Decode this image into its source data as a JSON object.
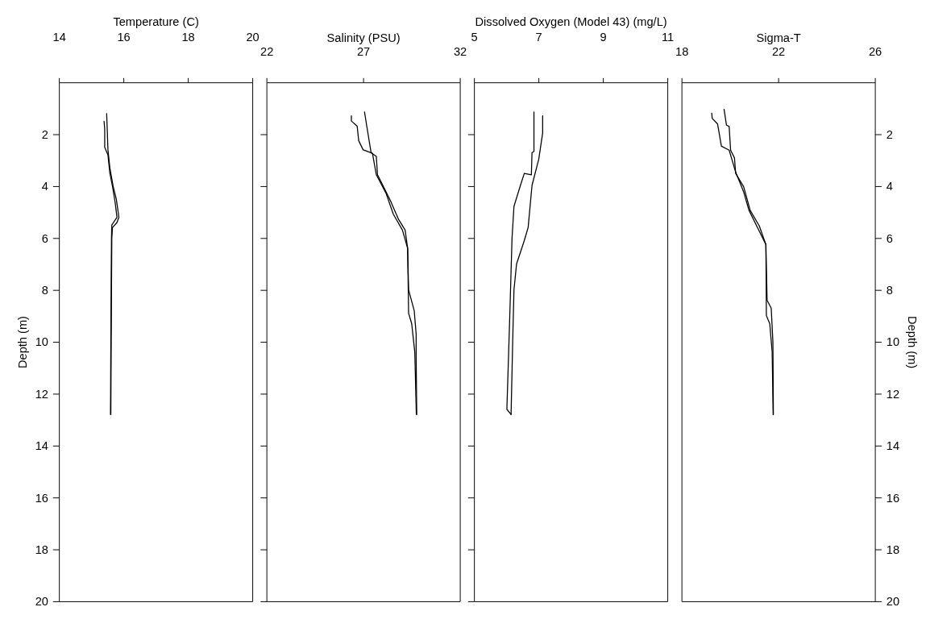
{
  "chart_data": [
    {
      "type": "line",
      "xlabel": "Temperature (C)",
      "ylabel": "Depth (m)",
      "xlim": [
        14,
        20
      ],
      "xticks": [
        14,
        16,
        18,
        20
      ],
      "ylim": [
        20,
        0
      ],
      "yticks": [
        2,
        4,
        6,
        8,
        10,
        12,
        14,
        16,
        18,
        20
      ],
      "grid": false,
      "series": [
        {
          "color": "#000000",
          "x": [
            15.48,
            15.5,
            15.52,
            15.58,
            15.68,
            15.78,
            15.86,
            15.8,
            15.66,
            15.64,
            15.63,
            15.62,
            15.61
          ],
          "values": [
            1.2,
            1.9,
            2.6,
            3.3,
            4.0,
            4.5,
            5.2,
            5.4,
            5.6,
            6.0,
            8,
            10,
            12.8
          ]
        },
        {
          "color": "#000000",
          "x": [
            15.4,
            15.42,
            15.42,
            15.52,
            15.58,
            15.66,
            15.74,
            15.8,
            15.64,
            15.63,
            15.62,
            15.61,
            15.6
          ],
          "values": [
            1.5,
            1.8,
            2.5,
            2.8,
            3.5,
            4.0,
            4.6,
            5.2,
            5.5,
            6,
            8,
            10,
            12.8
          ]
        }
      ]
    },
    {
      "type": "line",
      "xlabel": "Salinity (PSU)",
      "xlim": [
        22,
        32
      ],
      "xticks": [
        22,
        27,
        32
      ],
      "ylim": [
        20,
        0
      ],
      "yticks": [
        2,
        4,
        6,
        8,
        10,
        12,
        14,
        16,
        18,
        20
      ],
      "tick_labels": "x",
      "grid": false,
      "series": [
        {
          "color": "#000000",
          "x": [
            27.07,
            27.2,
            27.41,
            27.68,
            27.74,
            28.02,
            28.42,
            28.83,
            29.17,
            29.3,
            29.35,
            29.64,
            29.74,
            29.74,
            29.77
          ],
          "values": [
            1.14,
            1.75,
            2.71,
            2.85,
            3.56,
            3.97,
            4.58,
            5.28,
            5.69,
            6.4,
            8.0,
            8.8,
            9.7,
            10.6,
            12.8
          ]
        },
        {
          "color": "#000000",
          "x": [
            26.39,
            26.39,
            26.69,
            26.77,
            27.0,
            27.48,
            27.68,
            28.18,
            28.56,
            29.03,
            29.3,
            29.35,
            29.51,
            29.67,
            29.75
          ],
          "values": [
            1.29,
            1.49,
            1.69,
            2.25,
            2.6,
            2.73,
            3.56,
            4.27,
            5.08,
            5.69,
            6.4,
            8.9,
            9.3,
            10.4,
            12.8
          ]
        }
      ]
    },
    {
      "type": "line",
      "xlabel": "Dissolved Oxygen (Model 43) (mg/L)",
      "xlim": [
        5,
        11
      ],
      "xticks": [
        5,
        7,
        9,
        11
      ],
      "ylim": [
        20,
        0
      ],
      "yticks": [
        2,
        4,
        6,
        8,
        10,
        12,
        14,
        16,
        18,
        20
      ],
      "tick_labels": "x",
      "grid": false,
      "series": [
        {
          "color": "#000000",
          "x": [
            7.13,
            7.13,
            7.01,
            6.8,
            6.68,
            6.56,
            6.32,
            6.24,
            6.2,
            6.15
          ],
          "values": [
            1.29,
            1.95,
            2.96,
            3.97,
            5.59,
            6.1,
            7.0,
            8.0,
            10.0,
            12.8
          ]
        },
        {
          "color": "#000000",
          "x": [
            6.86,
            6.86,
            6.8,
            6.78,
            6.56,
            6.44,
            6.24,
            6.18,
            6.11,
            6.07,
            6.02,
            6.15
          ],
          "values": [
            1.14,
            2.66,
            2.71,
            3.56,
            3.51,
            3.97,
            4.78,
            6.0,
            9.0,
            10.6,
            12.6,
            12.8
          ]
        }
      ]
    },
    {
      "type": "line",
      "xlabel": "Sigma-T",
      "y2label": "Depth (m)",
      "xlim": [
        18,
        26
      ],
      "xticks": [
        18,
        22,
        26
      ],
      "y2lim": [
        20,
        0
      ],
      "y2ticks": [
        2,
        4,
        6,
        8,
        10,
        12,
        14,
        16,
        18,
        20
      ],
      "grid": false,
      "series": [
        {
          "color": "#000000",
          "axis": "y2",
          "x": [
            19.76,
            19.86,
            19.97,
            20.03,
            20.19,
            20.24,
            20.57,
            20.84,
            21.22,
            21.49,
            21.54,
            21.71,
            21.78,
            21.8
          ],
          "values": [
            1.04,
            1.65,
            1.7,
            2.61,
            2.91,
            3.51,
            4.02,
            4.93,
            5.54,
            6.25,
            8.4,
            8.7,
            10.0,
            12.8
          ]
        },
        {
          "color": "#000000",
          "axis": "y2",
          "x": [
            19.25,
            19.27,
            19.49,
            19.65,
            19.97,
            20.24,
            20.57,
            20.79,
            21.22,
            21.49,
            21.51,
            21.65,
            21.75,
            21.79
          ],
          "values": [
            1.19,
            1.39,
            1.6,
            2.46,
            2.61,
            3.46,
            4.22,
            4.93,
            5.74,
            6.25,
            8.99,
            9.3,
            10.4,
            12.8
          ]
        }
      ]
    }
  ]
}
